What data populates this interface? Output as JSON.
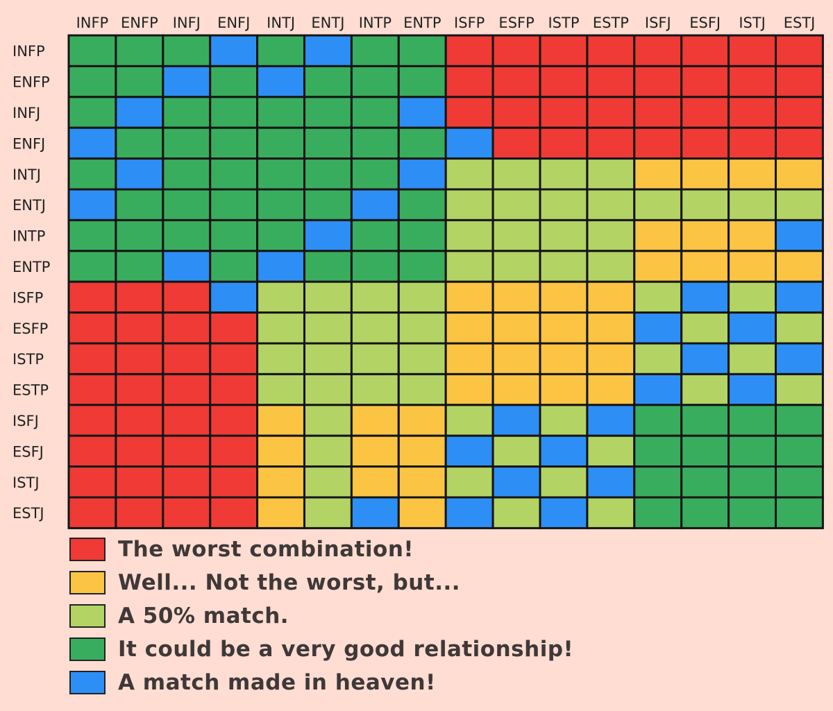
{
  "chart_data": {
    "type": "heatmap",
    "title": "",
    "columns": [
      "INFP",
      "ENFP",
      "INFJ",
      "ENFJ",
      "INTJ",
      "ENTJ",
      "INTP",
      "ENTP",
      "ISFP",
      "ESFP",
      "ISTP",
      "ESTP",
      "ISFJ",
      "ESFJ",
      "ISTJ",
      "ESTJ"
    ],
    "rows": [
      "INFP",
      "ENFP",
      "INFJ",
      "ENFJ",
      "INTJ",
      "ENTJ",
      "INTP",
      "ENTP",
      "ISFP",
      "ESFP",
      "ISTP",
      "ESTP",
      "ISFJ",
      "ESFJ",
      "ISTJ",
      "ESTJ"
    ],
    "levels": {
      "R": {
        "color": "#ef3a35",
        "label": "The worst combination!",
        "name": "worst"
      },
      "Y": {
        "color": "#fbc443",
        "label": "Well... Not the worst, but...",
        "name": "not-worst"
      },
      "L": {
        "color": "#b3d365",
        "label": "A 50% match.",
        "name": "fifty"
      },
      "G": {
        "color": "#39ad5e",
        "label": "It could be a very good relationship!",
        "name": "very-good"
      },
      "B": {
        "color": "#2d8ff5",
        "label": "A match made in heaven!",
        "name": "heaven"
      }
    },
    "matrix": [
      "GGGBGBGGRRRRRRRR",
      "GGBGBGGGRRRRRRRR",
      "GBGGGGGBRRRRRRRR",
      "BGGGGGGGBRRRRRRR",
      "GBGGGGGBLLLLYYYY",
      "BGGGGGBGLLLLLLLL",
      "GGGGGBGGLLLLYYYB",
      "GGBGBGGGLLLLYYYY",
      "RRRBLLLLYYYYLBLB",
      "RRRRLLLLYYYYBLBL",
      "RRRRLLLLYYYYLBLB",
      "RRRRLLLLYYYYBLBL",
      "RRRRYLYYLBLBGGGG",
      "RRRRYLYYBLBLGGGG",
      "RRRRYLYYLBLBGGGG",
      "RRRRYLBYBLBLGGGG"
    ]
  },
  "legend": {
    "items": [
      {
        "key": "R",
        "label": "The worst combination!"
      },
      {
        "key": "Y",
        "label": "Well... Not the worst, but..."
      },
      {
        "key": "L",
        "label": "A 50% match."
      },
      {
        "key": "G",
        "label": "It could be a very good relationship!"
      },
      {
        "key": "B",
        "label": "A match made in heaven!"
      }
    ]
  }
}
